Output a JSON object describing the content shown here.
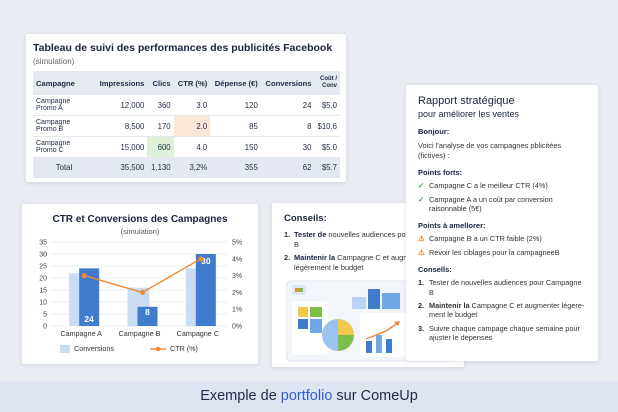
{
  "colors": {
    "accent": "#2f5fcf",
    "bar_light": "#c9dcf3",
    "bar_dark": "#3f7dcc",
    "line_orange": "#ec8a36",
    "green": "#3ea845",
    "orange": "#e8891c"
  },
  "table_card": {
    "title": "Tableau de suivi des performances des publicités Facebook",
    "subtitle": "(simulation)",
    "headers": [
      "Campagne",
      "Impressions",
      "Clics",
      "CTR (%)",
      "Dépense (€)",
      "Conversions",
      "Coût / Conv"
    ],
    "rows": [
      [
        "Campagne Promo A",
        "12,000",
        "360",
        "3.0",
        "120",
        "24",
        "$5.0"
      ],
      [
        "Campagne Promo B",
        "8,500",
        "170",
        "2.0",
        "85",
        "8",
        "$10.6"
      ],
      [
        "Campagne Promo C",
        "15,000",
        "600",
        "4.0",
        "150",
        "30",
        "$5.0"
      ]
    ],
    "total": [
      "Total",
      "35,500",
      "1,130",
      "3,2%",
      "355",
      "62",
      "$5.7"
    ]
  },
  "chart_data": {
    "type": "bar",
    "title": "CTR et Conversions des Campagnes",
    "subtitle": "(simulation)",
    "categories": [
      "Campagne A",
      "Campagne B",
      "Campagne C"
    ],
    "series": [
      {
        "name": "Conversions",
        "type": "bar",
        "values": [
          24,
          8,
          30
        ],
        "background_values": [
          22,
          16,
          24
        ]
      },
      {
        "name": "CTR (%)",
        "type": "line",
        "values": [
          3.0,
          2.0,
          4.0
        ]
      }
    ],
    "data_labels": [
      "24",
      "8",
      "30"
    ],
    "y_left": {
      "ticks": [
        "0",
        "5",
        "10",
        "15",
        "20",
        "25",
        "30",
        "35"
      ],
      "ylim": [
        0,
        35
      ]
    },
    "y_right": {
      "ticks": [
        "0%",
        "1%",
        "2%",
        "3%",
        "4%",
        "5%"
      ],
      "ylim": [
        0,
        5
      ]
    },
    "legend": [
      "Conversions",
      "CTR (%)"
    ],
    "legend_position": "bottom"
  },
  "advice_card": {
    "heading": "Conseils:",
    "items": [
      {
        "num": "1.",
        "bold": "Tester de",
        "rest": " nouvelles audiences pour Campagne B"
      },
      {
        "num": "2.",
        "bold": "Maintenir la",
        "rest": " Campagne C et augmenter légèrement le budget"
      }
    ]
  },
  "report_card": {
    "title": "Rapport stratégique",
    "subtitle": "pour améliorer les ventes",
    "greeting": "Bonjour:",
    "intro": "Voici l'analyse de vos campagnes pblicitées (fictives) :",
    "strengths_label": "Points forts:",
    "strengths": [
      "Campagne C a le meilleur CTR (4%)",
      "Campagne A a un coût par conversion raisonnable (5€)"
    ],
    "improve_label": "Points à amellorer:",
    "improvements": [
      "Campagne B a un CTR faible (2%)",
      "Revoir les ciblages pour la campagneeB"
    ],
    "advice_label": "Consells:",
    "advice": [
      {
        "num": "1.",
        "bold": "",
        "rest": "Tester de nouvelles audiences pour Campagne B"
      },
      {
        "num": "2.",
        "bold": "Maintenir la",
        "rest": " Campagne C et augmenter légere-ment le budget"
      },
      {
        "num": "3.",
        "bold": "",
        "rest": "Suivre chaque campage chaque semaine pour ajuster le depenses"
      }
    ]
  },
  "footer": {
    "part1": "Exemple de ",
    "accent": "portfolio",
    "part2": " sur ",
    "brand": "ComeUp"
  }
}
